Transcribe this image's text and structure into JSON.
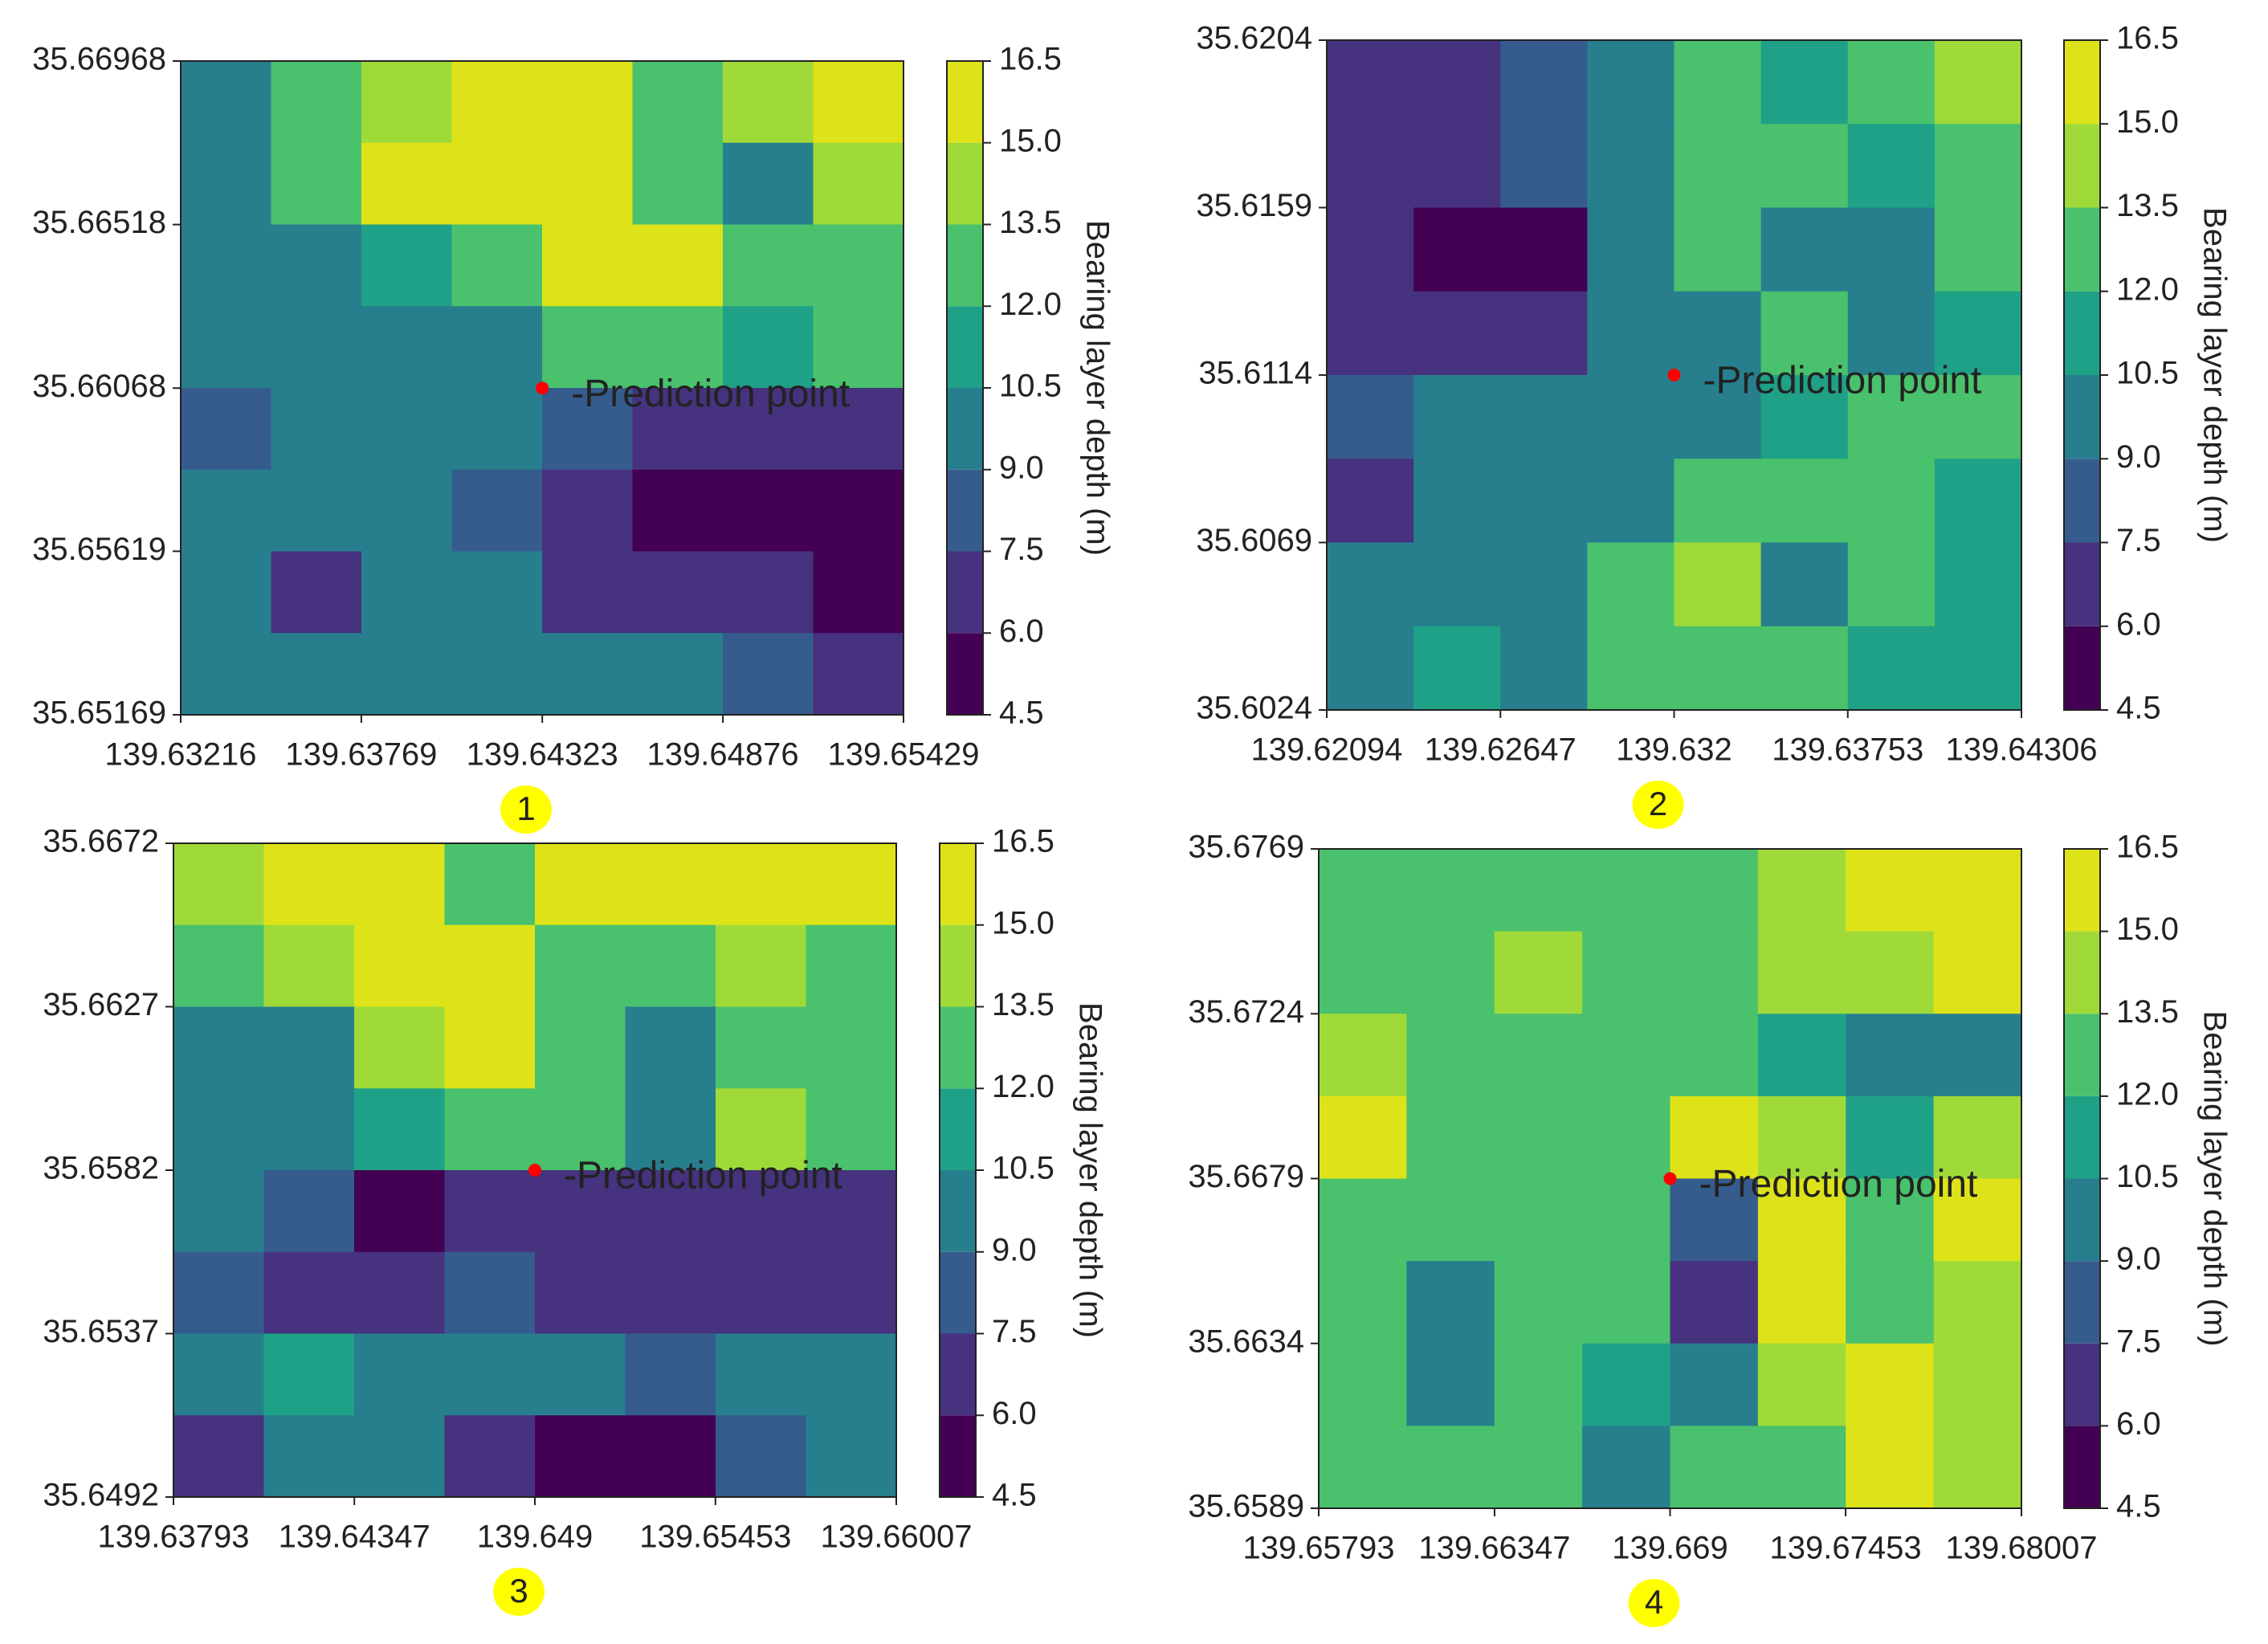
{
  "chart_data": [
    {
      "type": "contour",
      "caption": "1",
      "colorbar_label": "Bearing layer depth (m)",
      "annotation": "-Prediction point",
      "point": {
        "x": 139.64323,
        "y": 35.66068
      },
      "point_color": "#ff0000",
      "xlim": [
        139.63216,
        139.65429
      ],
      "xticks": [
        139.63216,
        139.63769,
        139.64323,
        139.64876,
        139.65429
      ],
      "ylim": [
        35.65169,
        35.66968
      ],
      "yticks": [
        35.66968,
        35.66518,
        35.66068,
        35.65619,
        35.65169
      ],
      "clim": [
        4.5,
        16.5
      ],
      "cticks": [
        4.5,
        {
          "value": 6,
          "label": "6.0"
        },
        7.5,
        {
          "value": 9,
          "label": "9.0"
        },
        10.5,
        {
          "value": 12,
          "label": "12.0"
        },
        13.5,
        {
          "value": 15,
          "label": "15.0"
        },
        16.5
      ],
      "colors": [
        "#440154",
        "#46327e",
        "#365c8d",
        "#277f8e",
        "#1fa187",
        "#4ac16d",
        "#a0da39",
        "#dde318"
      ],
      "z": [
        [
          10,
          13,
          14,
          16,
          16,
          13,
          14,
          16
        ],
        [
          10,
          12,
          15,
          16,
          16,
          12,
          10,
          14
        ],
        [
          9,
          10,
          11,
          13,
          16,
          15,
          12,
          12
        ],
        [
          9,
          10,
          10,
          10,
          13,
          12,
          11,
          13
        ],
        [
          8,
          10,
          9,
          10,
          8,
          7,
          7,
          6
        ],
        [
          10,
          10,
          10,
          8,
          7,
          5,
          5,
          5
        ],
        [
          9,
          7,
          9,
          9,
          7,
          7,
          6,
          5
        ],
        [
          10,
          10,
          9,
          10,
          10,
          9,
          8,
          6
        ]
      ]
    },
    {
      "type": "contour",
      "caption": "2",
      "colorbar_label": "Bearing layer depth (m)",
      "annotation": "-Prediction point",
      "point": {
        "x": 139.632,
        "y": 35.6114
      },
      "point_color": "#ff0000",
      "xlim": [
        139.62094,
        139.64306
      ],
      "xticks": [
        139.62094,
        139.62647,
        139.632,
        139.63753,
        139.64306
      ],
      "ylim": [
        35.6024,
        35.6204
      ],
      "yticks": [
        35.6204,
        35.6159,
        35.6114,
        35.6069,
        35.6024
      ],
      "clim": [
        4.5,
        16.5
      ],
      "cticks": [
        4.5,
        {
          "value": 6,
          "label": "6.0"
        },
        7.5,
        {
          "value": 9,
          "label": "9.0"
        },
        10.5,
        {
          "value": 12,
          "label": "12.0"
        },
        13.5,
        {
          "value": 15,
          "label": "15.0"
        },
        16.5
      ],
      "colors": [
        "#440154",
        "#46327e",
        "#365c8d",
        "#277f8e",
        "#1fa187",
        "#4ac16d",
        "#a0da39",
        "#dde318"
      ],
      "z": [
        [
          7,
          7,
          8,
          10,
          12,
          11,
          13,
          14
        ],
        [
          7,
          7,
          8,
          10,
          13,
          12,
          11,
          12
        ],
        [
          7,
          5,
          5,
          9,
          12,
          9,
          10,
          12
        ],
        [
          7,
          7,
          6,
          9,
          10,
          12,
          10,
          11
        ],
        [
          8,
          9,
          9,
          10,
          10,
          11,
          12,
          12
        ],
        [
          7,
          9,
          10,
          10,
          12,
          12,
          12,
          11
        ],
        [
          10,
          10,
          10,
          12,
          14,
          10,
          12,
          11
        ],
        [
          10,
          11,
          10,
          12,
          13,
          12,
          11,
          11
        ]
      ]
    },
    {
      "type": "contour",
      "caption": "3",
      "colorbar_label": "Bearing layer depth (m)",
      "annotation": "-Prediction point",
      "point": {
        "x": 139.649,
        "y": 35.6582
      },
      "point_color": "#ff0000",
      "xlim": [
        139.63793,
        139.66007
      ],
      "xticks": [
        139.63793,
        139.64347,
        139.649,
        139.65453,
        139.66007
      ],
      "ylim": [
        35.6492,
        35.6672
      ],
      "yticks": [
        35.6672,
        35.6627,
        35.6582,
        35.6537,
        35.6492
      ],
      "clim": [
        4.5,
        16.5
      ],
      "cticks": [
        4.5,
        {
          "value": 6,
          "label": "6.0"
        },
        7.5,
        {
          "value": 9,
          "label": "9.0"
        },
        10.5,
        {
          "value": 12,
          "label": "12.0"
        },
        13.5,
        {
          "value": 15,
          "label": "15.0"
        },
        16.5
      ],
      "colors": [
        "#440154",
        "#46327e",
        "#365c8d",
        "#277f8e",
        "#1fa187",
        "#4ac16d",
        "#a0da39",
        "#dde318"
      ],
      "z": [
        [
          14,
          15,
          16,
          13,
          15,
          16,
          15,
          16
        ],
        [
          12,
          14,
          16,
          16,
          13,
          12,
          14,
          13
        ],
        [
          9,
          10,
          14,
          16,
          12,
          9,
          13,
          13
        ],
        [
          9,
          9,
          11,
          13,
          12,
          10,
          14,
          13
        ],
        [
          10,
          8,
          5,
          7,
          7,
          7,
          7,
          7
        ],
        [
          8,
          7,
          7,
          8,
          7,
          7,
          7,
          6
        ],
        [
          9,
          11,
          9,
          10,
          9,
          8,
          10,
          9
        ],
        [
          7,
          10,
          9,
          7,
          5,
          5,
          8,
          9
        ]
      ]
    },
    {
      "type": "contour",
      "caption": "4",
      "colorbar_label": "Bearing layer depth (m)",
      "annotation": "-Prediction point",
      "point": {
        "x": 139.669,
        "y": 35.6679
      },
      "point_color": "#ff0000",
      "xlim": [
        139.65793,
        139.68007
      ],
      "xticks": [
        139.65793,
        139.66347,
        139.669,
        139.67453,
        139.68007
      ],
      "ylim": [
        35.6589,
        35.6769
      ],
      "yticks": [
        35.6769,
        35.6724,
        35.6679,
        35.6634,
        35.6589
      ],
      "clim": [
        4.5,
        16.5
      ],
      "cticks": [
        4.5,
        {
          "value": 6,
          "label": "6.0"
        },
        7.5,
        {
          "value": 9,
          "label": "9.0"
        },
        10.5,
        {
          "value": 12,
          "label": "12.0"
        },
        13.5,
        {
          "value": 15,
          "label": "15.0"
        },
        16.5
      ],
      "colors": [
        "#440154",
        "#46327e",
        "#365c8d",
        "#277f8e",
        "#1fa187",
        "#4ac16d",
        "#a0da39",
        "#dde318"
      ],
      "z": [
        [
          12,
          13,
          13,
          12,
          13,
          14,
          15,
          16
        ],
        [
          12,
          13,
          14,
          13,
          13,
          14,
          14,
          15
        ],
        [
          14,
          13,
          13,
          13,
          13,
          11,
          9,
          10
        ],
        [
          15,
          13,
          13,
          12,
          15,
          14,
          11,
          14
        ],
        [
          13,
          12,
          12,
          12,
          8,
          15,
          12,
          16
        ],
        [
          12,
          10,
          12,
          13,
          7,
          15,
          12,
          14
        ],
        [
          12,
          9,
          12,
          11,
          10,
          14,
          15,
          14
        ],
        [
          12,
          12,
          12,
          10,
          12,
          13,
          16,
          14
        ]
      ]
    }
  ]
}
